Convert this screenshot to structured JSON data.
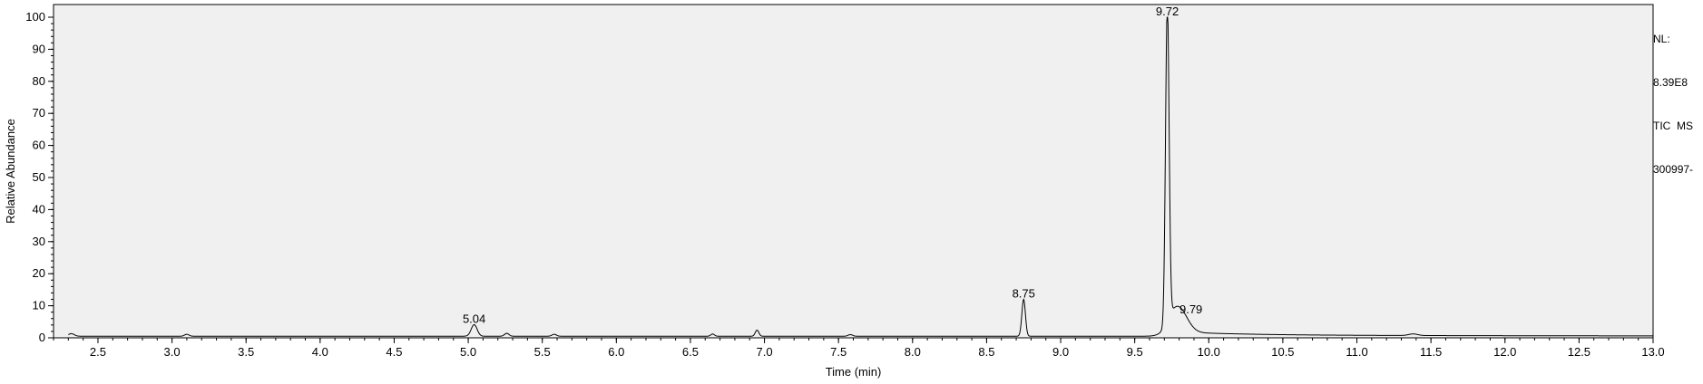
{
  "side_info": {
    "line1": "NL:",
    "line2": "8.39E8",
    "line3": "TIC  MS",
    "line4": "300997-"
  },
  "chart_data": {
    "type": "line",
    "xlabel": "Time (min)",
    "ylabel": "Relative Abundance",
    "xlim": [
      2.2,
      13.0
    ],
    "ylim": [
      0,
      100
    ],
    "xticks": [
      "2.5",
      "3.0",
      "3.5",
      "4.0",
      "4.5",
      "5.0",
      "5.5",
      "6.0",
      "6.5",
      "7.0",
      "7.5",
      "8.0",
      "8.5",
      "9.0",
      "9.5",
      "10.0",
      "10.5",
      "11.0",
      "11.5",
      "12.0",
      "12.5",
      "13.0"
    ],
    "yticks": [
      "0",
      "10",
      "20",
      "30",
      "40",
      "50",
      "60",
      "70",
      "80",
      "90",
      "100"
    ],
    "grid": false,
    "baseline": 0.5,
    "series": [
      {
        "peaks": [
          {
            "x": 2.32,
            "y": 0.8,
            "w": 0.02
          },
          {
            "x": 3.1,
            "y": 0.6,
            "w": 0.015
          },
          {
            "x": 5.04,
            "y": 3.6,
            "w": 0.02
          },
          {
            "x": 5.26,
            "y": 0.9,
            "w": 0.015
          },
          {
            "x": 5.58,
            "y": 0.6,
            "w": 0.015
          },
          {
            "x": 6.65,
            "y": 0.7,
            "w": 0.012
          },
          {
            "x": 6.95,
            "y": 1.9,
            "w": 0.012
          },
          {
            "x": 7.58,
            "y": 0.5,
            "w": 0.015
          },
          {
            "x": 8.75,
            "y": 11.5,
            "w": 0.012
          },
          {
            "x": 9.72,
            "y": 99.5,
            "w": 0.012
          },
          {
            "x": 9.79,
            "y": 8.0,
            "w": 0.06
          },
          {
            "x": 11.38,
            "y": 0.5,
            "w": 0.03
          }
        ],
        "tail": {
          "start": 9.72,
          "level": 1.2,
          "decay": 0.5
        }
      }
    ],
    "peak_labels": [
      {
        "x": 5.04,
        "y": 3.6,
        "label": "5.04"
      },
      {
        "x": 8.75,
        "y": 11.5,
        "label": "8.75"
      },
      {
        "x": 9.72,
        "y": 99.5,
        "label": "9.72"
      },
      {
        "x": 9.79,
        "y": 6.5,
        "label": "9.79"
      }
    ]
  }
}
